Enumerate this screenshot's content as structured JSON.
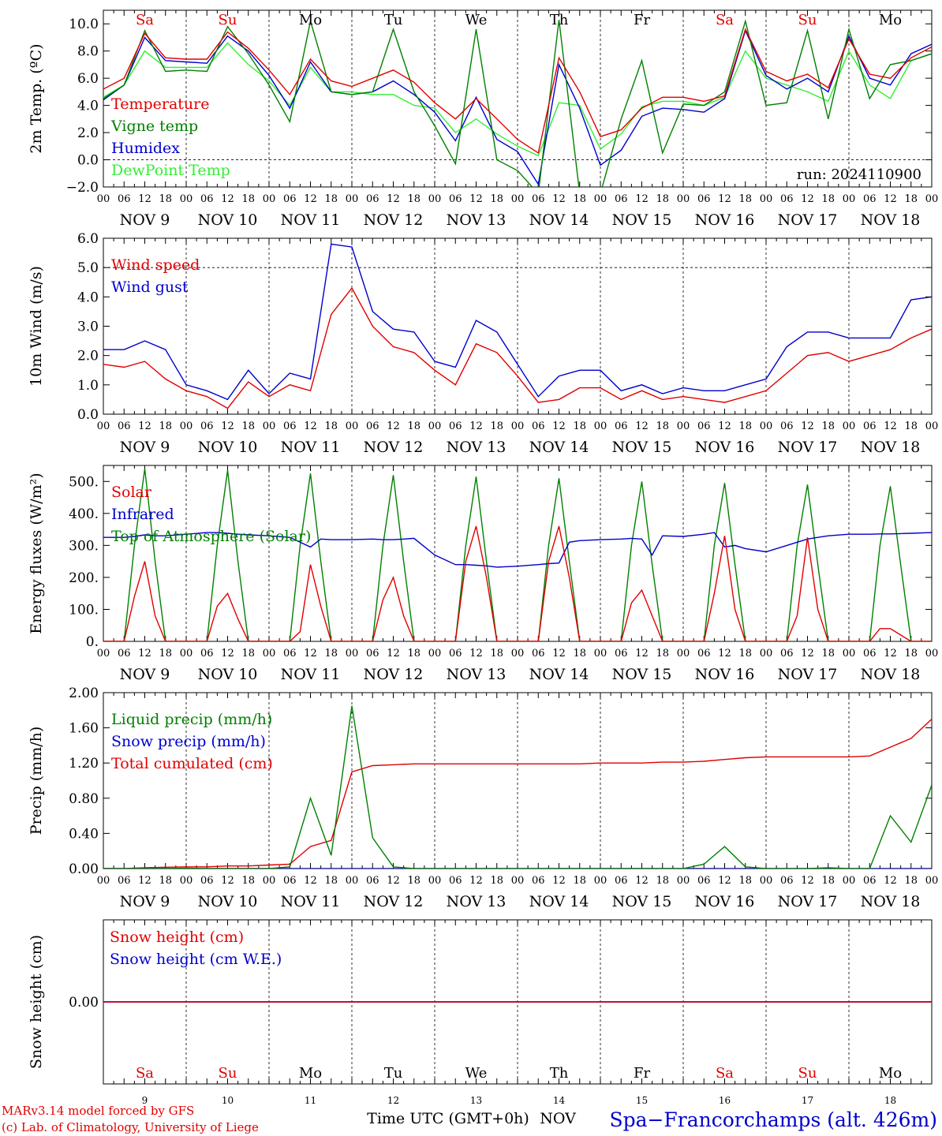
{
  "chart_data": [
    {
      "type": "line",
      "ylabel": "2m Temp. (ºC)",
      "ylim": [
        -2,
        11
      ],
      "yticks": [
        "10.0",
        "8.0",
        "6.0",
        "4.0",
        "2.0",
        "0.0",
        "−2.0"
      ],
      "ytick_values": [
        10,
        8,
        6,
        4,
        2,
        0,
        -2
      ],
      "hline": 0,
      "run_label": "run: 2024110900",
      "day_labels": [
        {
          "text": "Sa",
          "color": "#e00000"
        },
        {
          "text": "Su",
          "color": "#e00000"
        },
        {
          "text": "Mo",
          "color": "#000000"
        },
        {
          "text": "Tu",
          "color": "#000000"
        },
        {
          "text": "We",
          "color": "#000000"
        },
        {
          "text": "Th",
          "color": "#000000"
        },
        {
          "text": "Fr",
          "color": "#000000"
        },
        {
          "text": "Sa",
          "color": "#e00000"
        },
        {
          "text": "Su",
          "color": "#e00000"
        },
        {
          "text": "Mo",
          "color": "#000000"
        }
      ],
      "x": [
        0,
        6,
        12,
        18,
        24,
        30,
        36,
        42,
        48,
        54,
        60,
        66,
        72,
        78,
        84,
        90,
        96,
        102,
        108,
        114,
        120,
        126,
        132,
        138,
        144,
        150,
        156,
        162,
        168,
        174,
        180,
        186,
        192,
        198,
        204,
        210,
        216,
        222,
        228,
        234,
        240
      ],
      "series": [
        {
          "name": "Temperature",
          "color": "#e00000",
          "values": [
            5.2,
            6.0,
            9.3,
            7.5,
            7.4,
            7.4,
            9.4,
            8.2,
            6.6,
            4.8,
            7.4,
            5.8,
            5.4,
            6.0,
            6.6,
            5.7,
            4.2,
            3.0,
            4.5,
            3.0,
            1.5,
            0.5,
            7.5,
            5.0,
            1.7,
            2.2,
            3.8,
            4.6,
            4.6,
            4.3,
            4.7,
            9.6,
            6.5,
            5.8,
            6.3,
            5.3,
            8.9,
            6.3,
            6.0,
            7.5,
            8.3
          ]
        },
        {
          "name": "Vigne temp",
          "color": "#008000",
          "values": [
            4.5,
            5.5,
            9.5,
            6.5,
            6.6,
            6.5,
            9.8,
            7.8,
            5.5,
            2.8,
            10.2,
            5.0,
            4.8,
            5.0,
            9.6,
            5.0,
            2.5,
            -0.3,
            9.6,
            0.0,
            -0.8,
            -2.5,
            10.3,
            -2.5,
            -2.5,
            3.0,
            7.3,
            0.5,
            4.1,
            4.0,
            5.0,
            10.2,
            4.0,
            4.2,
            9.5,
            3.0,
            9.6,
            4.5,
            7.0,
            7.3,
            7.8
          ]
        },
        {
          "name": "Humidex",
          "color": "#0000cc",
          "values": [
            4.4,
            5.5,
            9.0,
            7.3,
            7.2,
            7.1,
            9.1,
            8.0,
            6.2,
            3.8,
            7.2,
            5.0,
            4.8,
            5.0,
            5.8,
            4.8,
            3.5,
            1.4,
            4.6,
            1.5,
            0.6,
            -1.8,
            7.0,
            3.8,
            -0.4,
            0.7,
            3.2,
            3.8,
            3.7,
            3.5,
            4.5,
            9.5,
            6.2,
            5.2,
            6.0,
            5.0,
            9.1,
            6.0,
            5.5,
            7.8,
            8.5
          ]
        },
        {
          "name": "DewPoint Temp",
          "color": "#33ee33",
          "values": [
            4.6,
            5.5,
            8.0,
            6.8,
            6.8,
            6.8,
            8.6,
            7.0,
            5.8,
            4.0,
            6.8,
            5.0,
            5.0,
            4.8,
            4.8,
            4.0,
            3.8,
            2.0,
            3.0,
            1.9,
            1.0,
            0.3,
            4.2,
            4.0,
            0.8,
            1.9,
            3.9,
            4.3,
            4.3,
            4.0,
            4.6,
            8.0,
            6.0,
            5.5,
            5.0,
            4.3,
            8.0,
            5.5,
            4.5,
            7.3,
            7.8
          ]
        }
      ]
    },
    {
      "type": "line",
      "ylabel": "10m Wind (m/s)",
      "ylim": [
        0,
        6
      ],
      "yticks": [
        "6.0",
        "5.0",
        "4.0",
        "3.0",
        "2.0",
        "1.0",
        "0.0"
      ],
      "ytick_values": [
        6,
        5,
        4,
        3,
        2,
        1,
        0
      ],
      "hline": 5,
      "x": [
        0,
        6,
        12,
        18,
        24,
        30,
        36,
        42,
        48,
        54,
        60,
        66,
        72,
        78,
        84,
        90,
        96,
        102,
        108,
        114,
        120,
        126,
        132,
        138,
        144,
        150,
        156,
        162,
        168,
        174,
        180,
        186,
        192,
        198,
        204,
        210,
        216,
        222,
        228,
        234,
        240
      ],
      "series": [
        {
          "name": "Wind speed",
          "color": "#e00000",
          "values": [
            1.7,
            1.6,
            1.8,
            1.2,
            0.8,
            0.6,
            0.2,
            1.1,
            0.6,
            1.0,
            0.8,
            3.4,
            4.3,
            3.0,
            2.3,
            2.1,
            1.5,
            1.0,
            2.4,
            2.1,
            1.3,
            0.4,
            0.5,
            0.9,
            0.9,
            0.5,
            0.8,
            0.5,
            0.6,
            0.5,
            0.4,
            0.6,
            0.8,
            1.4,
            2.0,
            2.1,
            1.8,
            2.0,
            2.2,
            2.6,
            2.9
          ]
        },
        {
          "name": "Wind gust",
          "color": "#0000cc",
          "values": [
            2.2,
            2.2,
            2.5,
            2.2,
            1.0,
            0.8,
            0.5,
            1.5,
            0.7,
            1.4,
            1.2,
            5.8,
            5.7,
            3.5,
            2.9,
            2.8,
            1.8,
            1.6,
            3.2,
            2.8,
            1.7,
            0.6,
            1.3,
            1.5,
            1.5,
            0.8,
            1.0,
            0.7,
            0.9,
            0.8,
            0.8,
            1.0,
            1.2,
            2.3,
            2.8,
            2.8,
            2.6,
            2.6,
            2.6,
            3.9,
            4.0
          ]
        }
      ]
    },
    {
      "type": "line",
      "ylabel": "Energy fluxes (W/m²)",
      "ylim": [
        0,
        550
      ],
      "yticks": [
        "500.",
        "400.",
        "300.",
        "200.",
        "100.",
        "0."
      ],
      "ytick_values": [
        500,
        400,
        300,
        200,
        100,
        0
      ],
      "x": [
        0,
        6,
        9,
        12,
        15,
        18,
        24,
        30,
        33,
        36,
        39,
        42,
        48,
        54,
        57,
        60,
        63,
        66,
        72,
        78,
        81,
        84,
        87,
        90,
        96,
        102,
        105,
        108,
        111,
        114,
        120,
        126,
        129,
        132,
        135,
        138,
        144,
        150,
        153,
        156,
        159,
        162,
        168,
        174,
        177,
        180,
        183,
        186,
        192,
        198,
        201,
        204,
        207,
        210,
        216,
        222,
        225,
        228,
        231,
        234,
        240
      ],
      "series": [
        {
          "name": "Solar",
          "color": "#e00000",
          "values": [
            0,
            0,
            140,
            250,
            80,
            0,
            0,
            0,
            110,
            150,
            70,
            0,
            0,
            0,
            30,
            240,
            110,
            0,
            0,
            0,
            130,
            200,
            80,
            0,
            0,
            0,
            250,
            360,
            200,
            0,
            0,
            0,
            250,
            360,
            200,
            0,
            0,
            0,
            120,
            160,
            80,
            0,
            0,
            0,
            150,
            330,
            100,
            0,
            0,
            0,
            80,
            325,
            100,
            0,
            0,
            0,
            40,
            40,
            20,
            0,
            0
          ]
        },
        {
          "name": "Infrared",
          "color": "#0000cc",
          "values": [
            325,
            325,
            328,
            333,
            330,
            330,
            335,
            340,
            340,
            338,
            335,
            333,
            330,
            325,
            310,
            295,
            320,
            318,
            318,
            320,
            318,
            318,
            320,
            322,
            270,
            240,
            240,
            238,
            236,
            232,
            235,
            240,
            243,
            245,
            310,
            315,
            318,
            320,
            322,
            320,
            270,
            330,
            328,
            335,
            340,
            295,
            300,
            290,
            280,
            300,
            310,
            320,
            325,
            330,
            335,
            335,
            336,
            336,
            337,
            338,
            340
          ]
        },
        {
          "name": "Top of Atmosphere (Solar)",
          "color": "#008000",
          "values": [
            0,
            0,
            300,
            540,
            250,
            0,
            0,
            0,
            300,
            535,
            250,
            0,
            0,
            0,
            300,
            525,
            250,
            0,
            0,
            0,
            300,
            520,
            250,
            0,
            0,
            0,
            300,
            515,
            250,
            0,
            0,
            0,
            300,
            510,
            250,
            0,
            0,
            0,
            300,
            500,
            240,
            0,
            0,
            0,
            300,
            495,
            240,
            0,
            0,
            0,
            300,
            490,
            240,
            0,
            0,
            0,
            300,
            485,
            240,
            0,
            0
          ]
        }
      ]
    },
    {
      "type": "line",
      "ylabel": "Precip (mm/h)",
      "ylim": [
        0,
        2
      ],
      "yticks": [
        "2.00",
        "1.60",
        "1.20",
        "0.80",
        "0.40",
        "0.00"
      ],
      "ytick_values": [
        2.0,
        1.6,
        1.2,
        0.8,
        0.4,
        0.0
      ],
      "x": [
        0,
        6,
        12,
        18,
        24,
        30,
        36,
        42,
        48,
        54,
        60,
        66,
        72,
        78,
        84,
        90,
        96,
        102,
        108,
        114,
        120,
        126,
        132,
        138,
        144,
        150,
        156,
        162,
        168,
        174,
        180,
        186,
        192,
        198,
        204,
        210,
        216,
        222,
        228,
        234,
        240
      ],
      "series": [
        {
          "name": "Liquid precip (mm/h)",
          "color": "#008000",
          "values": [
            0,
            0,
            0,
            0,
            0.005,
            0,
            0,
            0,
            0,
            0.02,
            0.8,
            0.15,
            1.85,
            0.35,
            0.02,
            0,
            0,
            0,
            0,
            0,
            0,
            0,
            0,
            0,
            0,
            0,
            0,
            0,
            0,
            0.05,
            0.25,
            0.02,
            0,
            0,
            0,
            0.01,
            0,
            0,
            0.6,
            0.3,
            0.95
          ]
        },
        {
          "name": "Snow precip (mm/h)",
          "color": "#0000cc",
          "values": [
            0,
            0,
            0,
            0,
            0,
            0,
            0,
            0,
            0,
            0,
            0,
            0,
            0,
            0,
            0,
            0,
            0,
            0,
            0,
            0,
            0,
            0,
            0,
            0,
            0,
            0,
            0,
            0,
            0,
            0,
            0,
            0,
            0,
            0,
            0,
            0,
            0,
            0,
            0,
            0,
            0
          ]
        },
        {
          "name": "Total cumulated (cm)",
          "color": "#e00000",
          "values": [
            0,
            0,
            0.01,
            0.015,
            0.02,
            0.02,
            0.03,
            0.03,
            0.04,
            0.05,
            0.25,
            0.32,
            1.1,
            1.17,
            1.18,
            1.19,
            1.19,
            1.19,
            1.19,
            1.19,
            1.19,
            1.19,
            1.19,
            1.19,
            1.2,
            1.2,
            1.2,
            1.21,
            1.21,
            1.22,
            1.24,
            1.26,
            1.27,
            1.27,
            1.27,
            1.27,
            1.27,
            1.28,
            1.38,
            1.48,
            1.7
          ]
        }
      ]
    },
    {
      "type": "line",
      "ylabel": "Snow height (cm)",
      "ylim": [
        -1,
        1
      ],
      "yticks": [
        "0.00"
      ],
      "ytick_values": [
        0
      ],
      "x": [
        0,
        240
      ],
      "series": [
        {
          "name": "Snow height (cm)",
          "color": "#e00000",
          "values": [
            0,
            0
          ]
        },
        {
          "name": "Snow height (cm W.E.)",
          "color": "#0000cc",
          "values": [
            0,
            0
          ]
        },
        {
          "name": "",
          "color": "#8000a0",
          "values": [
            0,
            0
          ]
        }
      ],
      "day_labels": [
        {
          "text": "Sa",
          "color": "#e00000"
        },
        {
          "text": "Su",
          "color": "#e00000"
        },
        {
          "text": "Mo",
          "color": "#000000"
        },
        {
          "text": "Tu",
          "color": "#000000"
        },
        {
          "text": "We",
          "color": "#000000"
        },
        {
          "text": "Th",
          "color": "#000000"
        },
        {
          "text": "Fr",
          "color": "#000000"
        },
        {
          "text": "Sa",
          "color": "#e00000"
        },
        {
          "text": "Su",
          "color": "#e00000"
        },
        {
          "text": "Mo",
          "color": "#000000"
        }
      ],
      "day_numbers": [
        "9",
        "10",
        "11",
        "12",
        "13",
        "14",
        "15",
        "16",
        "17",
        "18"
      ],
      "xlabel": "Time UTC (GMT+0h)",
      "month_label": "NOV"
    }
  ],
  "x_axis": {
    "hour_labels": [
      "00",
      "06",
      "12",
      "18"
    ],
    "date_labels": [
      "NOV  9",
      "NOV 10",
      "NOV 11",
      "NOV 12",
      "NOV 13",
      "NOV 14",
      "NOV 15",
      "NOV 16",
      "NOV 17",
      "NOV 18"
    ],
    "final_hour": "00"
  },
  "footer": {
    "credit_line1": "MARv3.14 model forced by GFS",
    "credit_line2": "(c) Lab. of Climatology, University of Liege",
    "station": "Spa−Francorchamps (alt. 426m)"
  },
  "colors": {
    "red": "#e00000",
    "green": "#008000",
    "blue": "#0000cc",
    "lightgreen": "#33ee33",
    "purple": "#8000a0"
  }
}
